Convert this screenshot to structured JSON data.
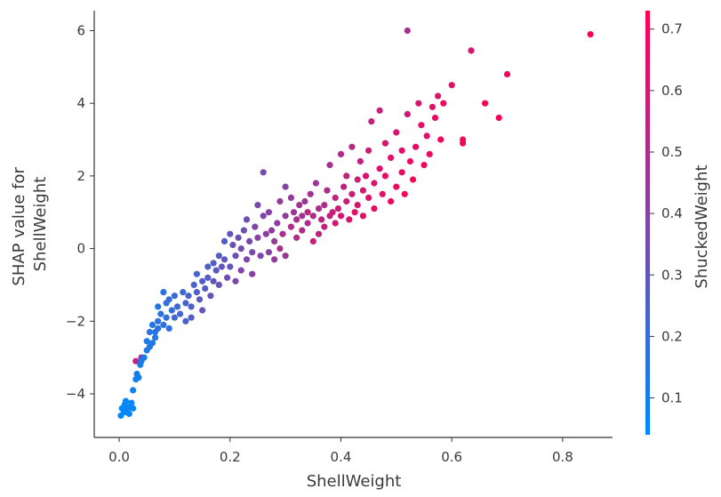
{
  "chart_data": {
    "type": "scatter",
    "xlabel": "ShellWeight",
    "ylabel": [
      "SHAP value for",
      "ShellWeight"
    ],
    "colorbar_label": "ShuckedWeight",
    "xlim": [
      -0.045,
      0.89
    ],
    "ylim": [
      -5.2,
      6.55
    ],
    "x_ticks": [
      0.0,
      0.2,
      0.4,
      0.6,
      0.8
    ],
    "x_tick_labels": [
      "0.0",
      "0.2",
      "0.4",
      "0.6",
      "0.8"
    ],
    "y_ticks": [
      -4,
      -2,
      0,
      2,
      4,
      6
    ],
    "y_tick_labels": [
      "−4",
      "−2",
      "0",
      "2",
      "4",
      "6"
    ],
    "colorbar_range": [
      0.04,
      0.73
    ],
    "colorbar_ticks": [
      0.1,
      0.2,
      0.3,
      0.4,
      0.5,
      0.6,
      0.7
    ],
    "colorbar_tick_labels": [
      "0.1",
      "0.2",
      "0.3",
      "0.4",
      "0.5",
      "0.6",
      "0.7"
    ],
    "colormap": [
      "#008afb",
      "#ff0052"
    ],
    "grid": false,
    "series": [
      {
        "points": [
          [
            0.003,
            -4.6,
            0.05
          ],
          [
            0.008,
            -4.45,
            0.06
          ],
          [
            0.01,
            -4.3,
            0.05
          ],
          [
            0.015,
            -4.5,
            0.06
          ],
          [
            0.02,
            -4.35,
            0.05
          ],
          [
            0.012,
            -4.2,
            0.06
          ],
          [
            0.005,
            -4.4,
            0.05
          ],
          [
            0.018,
            -4.55,
            0.06
          ],
          [
            0.025,
            -4.4,
            0.07
          ],
          [
            0.022,
            -4.25,
            0.06
          ],
          [
            0.01,
            -4.5,
            0.05
          ],
          [
            0.016,
            -4.38,
            0.06
          ],
          [
            0.025,
            -3.9,
            0.08
          ],
          [
            0.03,
            -3.6,
            0.09
          ],
          [
            0.032,
            -3.45,
            0.1
          ],
          [
            0.035,
            -3.55,
            0.1
          ],
          [
            0.03,
            -3.1,
            0.55
          ],
          [
            0.04,
            -3.0,
            0.45
          ],
          [
            0.038,
            -3.2,
            0.1
          ],
          [
            0.04,
            -3.1,
            0.12
          ],
          [
            0.045,
            -3.0,
            0.1
          ],
          [
            0.05,
            -2.8,
            0.12
          ],
          [
            0.055,
            -2.7,
            0.13
          ],
          [
            0.05,
            -2.55,
            0.12
          ],
          [
            0.06,
            -2.6,
            0.13
          ],
          [
            0.055,
            -2.3,
            0.15
          ],
          [
            0.06,
            -2.1,
            0.14
          ],
          [
            0.065,
            -2.3,
            0.15
          ],
          [
            0.07,
            -2.0,
            0.16
          ],
          [
            0.065,
            -2.45,
            0.14
          ],
          [
            0.07,
            -1.6,
            0.14
          ],
          [
            0.075,
            -1.8,
            0.16
          ],
          [
            0.07,
            -2.2,
            0.16
          ],
          [
            0.08,
            -2.1,
            0.17
          ],
          [
            0.085,
            -1.5,
            0.18
          ],
          [
            0.08,
            -1.2,
            0.16
          ],
          [
            0.085,
            -1.9,
            0.17
          ],
          [
            0.09,
            -2.2,
            0.16
          ],
          [
            0.095,
            -1.7,
            0.19
          ],
          [
            0.09,
            -1.4,
            0.18
          ],
          [
            0.1,
            -1.3,
            0.2
          ],
          [
            0.1,
            -1.9,
            0.22
          ],
          [
            0.105,
            -1.6,
            0.21
          ],
          [
            0.11,
            -1.8,
            0.22
          ],
          [
            0.12,
            -2.0,
            0.24
          ],
          [
            0.12,
            -1.5,
            0.23
          ],
          [
            0.115,
            -1.2,
            0.2
          ],
          [
            0.125,
            -1.3,
            0.24
          ],
          [
            0.13,
            -1.6,
            0.25
          ],
          [
            0.13,
            -1.9,
            0.27
          ],
          [
            0.135,
            -1.0,
            0.23
          ],
          [
            0.14,
            -0.7,
            0.24
          ],
          [
            0.14,
            -1.2,
            0.26
          ],
          [
            0.145,
            -1.4,
            0.28
          ],
          [
            0.15,
            -1.7,
            0.3
          ],
          [
            0.15,
            -0.9,
            0.26
          ],
          [
            0.155,
            -1.1,
            0.28
          ],
          [
            0.16,
            -0.5,
            0.25
          ],
          [
            0.16,
            -0.8,
            0.27
          ],
          [
            0.165,
            -1.3,
            0.3
          ],
          [
            0.17,
            -0.4,
            0.26
          ],
          [
            0.17,
            -0.9,
            0.3
          ],
          [
            0.175,
            -0.6,
            0.28
          ],
          [
            0.18,
            -0.2,
            0.27
          ],
          [
            0.18,
            -1.0,
            0.32
          ],
          [
            0.185,
            -0.5,
            0.3
          ],
          [
            0.19,
            0.2,
            0.26
          ],
          [
            0.19,
            -0.3,
            0.3
          ],
          [
            0.195,
            -0.8,
            0.33
          ],
          [
            0.2,
            0.4,
            0.3
          ],
          [
            0.2,
            -0.5,
            0.31
          ],
          [
            0.205,
            0.1,
            0.32
          ],
          [
            0.21,
            -0.2,
            0.34
          ],
          [
            0.21,
            -0.9,
            0.36
          ],
          [
            0.215,
            0.3,
            0.33
          ],
          [
            0.22,
            0.0,
            0.35
          ],
          [
            0.22,
            -0.6,
            0.38
          ],
          [
            0.225,
            0.5,
            0.33
          ],
          [
            0.23,
            -0.3,
            0.37
          ],
          [
            0.23,
            0.8,
            0.34
          ],
          [
            0.235,
            0.2,
            0.36
          ],
          [
            0.24,
            -0.1,
            0.37
          ],
          [
            0.24,
            -0.7,
            0.4
          ],
          [
            0.245,
            0.6,
            0.38
          ],
          [
            0.25,
            1.2,
            0.36
          ],
          [
            0.25,
            0.3,
            0.4
          ],
          [
            0.255,
            -0.2,
            0.38
          ],
          [
            0.26,
            0.9,
            0.38
          ],
          [
            0.26,
            2.1,
            0.35
          ],
          [
            0.265,
            0.4,
            0.42
          ],
          [
            0.27,
            -0.1,
            0.4
          ],
          [
            0.27,
            1.0,
            0.4
          ],
          [
            0.275,
            0.5,
            0.43
          ],
          [
            0.28,
            0.2,
            0.45
          ],
          [
            0.28,
            -0.3,
            0.44
          ],
          [
            0.285,
            0.7,
            0.42
          ],
          [
            0.29,
            0.0,
            0.5
          ],
          [
            0.29,
            1.3,
            0.44
          ],
          [
            0.295,
            0.4,
            0.5
          ],
          [
            0.3,
            1.7,
            0.4
          ],
          [
            0.3,
            0.9,
            0.43
          ],
          [
            0.3,
            -0.2,
            0.46
          ],
          [
            0.31,
            0.6,
            0.5
          ],
          [
            0.31,
            1.4,
            0.44
          ],
          [
            0.315,
            1.0,
            0.46
          ],
          [
            0.32,
            0.3,
            0.5
          ],
          [
            0.32,
            0.8,
            0.5
          ],
          [
            0.325,
            1.2,
            0.48
          ],
          [
            0.33,
            0.9,
            0.46
          ],
          [
            0.33,
            0.5,
            0.52
          ],
          [
            0.335,
            1.3,
            0.45
          ],
          [
            0.34,
            0.7,
            0.5
          ],
          [
            0.34,
            1.0,
            0.55
          ],
          [
            0.345,
            1.5,
            0.47
          ],
          [
            0.35,
            0.2,
            0.58
          ],
          [
            0.35,
            0.9,
            0.52
          ],
          [
            0.355,
            1.8,
            0.45
          ],
          [
            0.36,
            1.1,
            0.5
          ],
          [
            0.36,
            0.4,
            0.56
          ],
          [
            0.365,
            0.8,
            0.54
          ],
          [
            0.37,
            1.2,
            0.52
          ],
          [
            0.37,
            0.6,
            0.57
          ],
          [
            0.375,
            1.6,
            0.5
          ],
          [
            0.38,
            0.9,
            0.55
          ],
          [
            0.38,
            2.3,
            0.48
          ],
          [
            0.385,
            1.0,
            0.58
          ],
          [
            0.39,
            0.7,
            0.6
          ],
          [
            0.39,
            1.4,
            0.55
          ],
          [
            0.395,
            1.1,
            0.58
          ],
          [
            0.4,
            2.6,
            0.52
          ],
          [
            0.4,
            0.9,
            0.62
          ],
          [
            0.405,
            1.7,
            0.55
          ],
          [
            0.41,
            1.3,
            0.58
          ],
          [
            0.41,
            2.0,
            0.56
          ],
          [
            0.415,
            0.8,
            0.62
          ],
          [
            0.42,
            1.5,
            0.58
          ],
          [
            0.42,
            2.8,
            0.52
          ],
          [
            0.425,
            1.0,
            0.64
          ],
          [
            0.43,
            1.9,
            0.58
          ],
          [
            0.43,
            1.2,
            0.62
          ],
          [
            0.435,
            2.4,
            0.56
          ],
          [
            0.44,
            1.6,
            0.6
          ],
          [
            0.44,
            0.9,
            0.66
          ],
          [
            0.445,
            2.0,
            0.62
          ],
          [
            0.45,
            1.4,
            0.65
          ],
          [
            0.45,
            2.7,
            0.58
          ],
          [
            0.455,
            3.5,
            0.56
          ],
          [
            0.46,
            1.8,
            0.62
          ],
          [
            0.46,
            1.1,
            0.68
          ],
          [
            0.47,
            2.2,
            0.64
          ],
          [
            0.47,
            3.8,
            0.56
          ],
          [
            0.475,
            1.5,
            0.66
          ],
          [
            0.48,
            2.0,
            0.66
          ],
          [
            0.48,
            2.9,
            0.62
          ],
          [
            0.49,
            1.3,
            0.68
          ],
          [
            0.49,
            2.5,
            0.64
          ],
          [
            0.5,
            1.7,
            0.68
          ],
          [
            0.5,
            3.2,
            0.62
          ],
          [
            0.51,
            2.1,
            0.66
          ],
          [
            0.51,
            2.7,
            0.65
          ],
          [
            0.515,
            1.5,
            0.7
          ],
          [
            0.52,
            3.7,
            0.6
          ],
          [
            0.52,
            6.0,
            0.5
          ],
          [
            0.525,
            2.4,
            0.67
          ],
          [
            0.53,
            1.9,
            0.7
          ],
          [
            0.535,
            2.8,
            0.66
          ],
          [
            0.54,
            4.0,
            0.62
          ],
          [
            0.545,
            3.4,
            0.64
          ],
          [
            0.55,
            2.3,
            0.7
          ],
          [
            0.555,
            3.1,
            0.66
          ],
          [
            0.56,
            2.6,
            0.68
          ],
          [
            0.565,
            3.9,
            0.64
          ],
          [
            0.57,
            3.6,
            0.66
          ],
          [
            0.575,
            4.2,
            0.63
          ],
          [
            0.58,
            3.0,
            0.7
          ],
          [
            0.585,
            4.0,
            0.68
          ],
          [
            0.6,
            4.5,
            0.64
          ],
          [
            0.62,
            3.0,
            0.68
          ],
          [
            0.62,
            2.9,
            0.7
          ],
          [
            0.635,
            5.45,
            0.62
          ],
          [
            0.66,
            4.0,
            0.7
          ],
          [
            0.685,
            3.6,
            0.7
          ],
          [
            0.7,
            4.8,
            0.7
          ],
          [
            0.85,
            5.9,
            0.72
          ]
        ]
      }
    ]
  }
}
